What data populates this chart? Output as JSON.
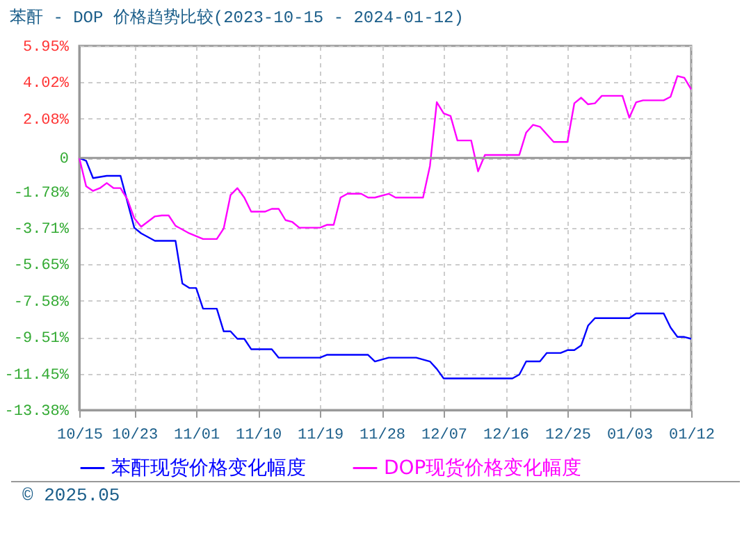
{
  "chart_data": {
    "type": "line",
    "title": "苯酐 - DOP 价格趋势比较(2023-10-15 - 2024-01-12)",
    "annotations": [
      "© 2025.05"
    ],
    "xlim": [
      "2023-10-15",
      "2024-01-12"
    ],
    "xticks": [
      {
        "value": "2023-10-15",
        "label": "10/15"
      },
      {
        "value": "2023-10-23",
        "label": "10/23"
      },
      {
        "value": "2023-11-01",
        "label": "11/01"
      },
      {
        "value": "2023-11-10",
        "label": "11/10"
      },
      {
        "value": "2023-11-19",
        "label": "11/19"
      },
      {
        "value": "2023-11-28",
        "label": "11/28"
      },
      {
        "value": "2023-12-07",
        "label": "12/07"
      },
      {
        "value": "2023-12-16",
        "label": "12/16"
      },
      {
        "value": "2023-12-25",
        "label": "12/25"
      },
      {
        "value": "2024-01-03",
        "label": "01/03"
      },
      {
        "value": "2024-01-12",
        "label": "01/12"
      }
    ],
    "ylim": [
      -13.38,
      5.95
    ],
    "yticks": [
      {
        "value": 5.95,
        "label": "5.95%"
      },
      {
        "value": 4.02,
        "label": "4.02%"
      },
      {
        "value": 2.08,
        "label": "2.08%"
      },
      {
        "value": 0,
        "label": "0"
      },
      {
        "value": -1.78,
        "label": "-1.78%"
      },
      {
        "value": -3.71,
        "label": "-3.71%"
      },
      {
        "value": -5.65,
        "label": "-5.65%"
      },
      {
        "value": -7.58,
        "label": "-7.58%"
      },
      {
        "value": -9.51,
        "label": "-9.51%"
      },
      {
        "value": -11.45,
        "label": "-11.45%"
      },
      {
        "value": -13.38,
        "label": "-13.38%"
      }
    ],
    "grid": true,
    "legend": "bottom",
    "marker": "none",
    "line_style": "solid",
    "ref_lines": [
      {
        "axis": "y",
        "value": 0,
        "color": "#999999"
      }
    ],
    "series": [
      {
        "name": "苯酐现货价格变化幅度",
        "color": "#0000ff",
        "x": [
          "2023-10-15",
          "2023-10-16",
          "2023-10-17",
          "2023-10-19",
          "2023-10-21",
          "2023-10-23",
          "2023-10-24",
          "2023-10-26",
          "2023-10-29",
          "2023-10-30",
          "2023-10-31",
          "2023-11-01",
          "2023-11-02",
          "2023-11-04",
          "2023-11-05",
          "2023-11-06",
          "2023-11-07",
          "2023-11-08",
          "2023-11-09",
          "2023-11-12",
          "2023-11-13",
          "2023-11-19",
          "2023-11-20",
          "2023-11-26",
          "2023-11-27",
          "2023-11-29",
          "2023-12-03",
          "2023-12-05",
          "2023-12-06",
          "2023-12-07",
          "2023-12-17",
          "2023-12-18",
          "2023-12-19",
          "2023-12-21",
          "2023-12-22",
          "2023-12-24",
          "2023-12-25",
          "2023-12-26",
          "2023-12-27",
          "2023-12-28",
          "2023-12-29",
          "2024-01-03",
          "2024-01-04",
          "2024-01-08",
          "2024-01-09",
          "2024-01-10",
          "2024-01-11",
          "2024-01-12"
        ],
        "values": [
          0,
          -0.15,
          -1.07,
          -0.95,
          -0.95,
          -3.7,
          -4.0,
          -4.4,
          -4.4,
          -6.67,
          -6.9,
          -6.9,
          -8.0,
          -8.0,
          -9.2,
          -9.2,
          -9.6,
          -9.6,
          -10.15,
          -10.15,
          -10.6,
          -10.6,
          -10.45,
          -10.45,
          -10.8,
          -10.6,
          -10.6,
          -10.8,
          -11.2,
          -11.7,
          -11.7,
          -11.5,
          -10.8,
          -10.8,
          -10.35,
          -10.35,
          -10.2,
          -10.2,
          -9.95,
          -8.9,
          -8.5,
          -8.5,
          -8.25,
          -8.25,
          -9.0,
          -9.5,
          -9.5,
          -9.6
        ]
      },
      {
        "name": "DOP现货价格变化幅度",
        "color": "#ff00ff",
        "x": [
          "2023-10-15",
          "2023-10-16",
          "2023-10-17",
          "2023-10-18",
          "2023-10-19",
          "2023-10-20",
          "2023-10-21",
          "2023-10-22",
          "2023-10-23",
          "2023-10-24",
          "2023-10-26",
          "2023-10-27",
          "2023-10-28",
          "2023-10-29",
          "2023-10-31",
          "2023-11-02",
          "2023-11-04",
          "2023-11-05",
          "2023-11-06",
          "2023-11-07",
          "2023-11-08",
          "2023-11-09",
          "2023-11-11",
          "2023-11-12",
          "2023-11-13",
          "2023-11-14",
          "2023-11-15",
          "2023-11-16",
          "2023-11-19",
          "2023-11-20",
          "2023-11-21",
          "2023-11-22",
          "2023-11-23",
          "2023-11-25",
          "2023-11-26",
          "2023-11-27",
          "2023-11-29",
          "2023-11-30",
          "2023-12-04",
          "2023-12-05",
          "2023-12-06",
          "2023-12-07",
          "2023-12-08",
          "2023-12-09",
          "2023-12-11",
          "2023-12-12",
          "2023-12-13",
          "2023-12-14",
          "2023-12-18",
          "2023-12-19",
          "2023-12-20",
          "2023-12-21",
          "2023-12-23",
          "2023-12-25",
          "2023-12-26",
          "2023-12-27",
          "2023-12-28",
          "2023-12-29",
          "2023-12-30",
          "2024-01-02",
          "2024-01-03",
          "2024-01-04",
          "2024-01-05",
          "2024-01-08",
          "2024-01-09",
          "2024-01-10",
          "2024-01-11",
          "2024-01-12"
        ],
        "values": [
          0,
          -1.5,
          -1.75,
          -1.6,
          -1.33,
          -1.6,
          -1.6,
          -2.2,
          -3.2,
          -3.65,
          -3.1,
          -3.05,
          -3.05,
          -3.6,
          -4.0,
          -4.3,
          -4.3,
          -3.75,
          -1.97,
          -1.6,
          -2.1,
          -2.85,
          -2.85,
          -2.7,
          -2.7,
          -3.3,
          -3.4,
          -3.7,
          -3.7,
          -3.55,
          -3.55,
          -2.1,
          -1.9,
          -1.9,
          -2.1,
          -2.1,
          -1.9,
          -2.1,
          -2.1,
          -0.43,
          2.96,
          2.37,
          2.23,
          0.93,
          0.93,
          -0.71,
          0.16,
          0.16,
          0.16,
          1.35,
          1.76,
          1.66,
          0.85,
          0.85,
          2.9,
          3.2,
          2.85,
          2.9,
          3.3,
          3.3,
          2.14,
          2.96,
          3.06,
          3.06,
          3.25,
          4.35,
          4.26,
          3.64
        ]
      }
    ]
  }
}
